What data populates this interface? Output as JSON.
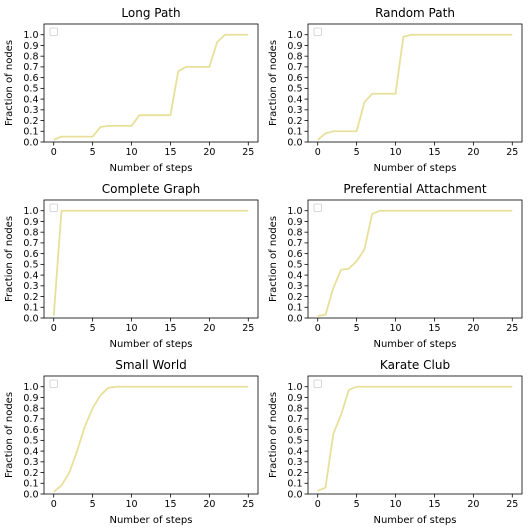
{
  "chart_data": [
    {
      "type": "line",
      "title": "Long Path",
      "xlabel": "Number of steps",
      "ylabel": "Fraction of nodes",
      "xlim": [
        -1.25,
        26.25
      ],
      "ylim": [
        0.0,
        1.1
      ],
      "xticks": [
        0,
        5,
        10,
        15,
        20,
        25
      ],
      "yticks": [
        0.0,
        0.1,
        0.2,
        0.3,
        0.4,
        0.5,
        0.6,
        0.7,
        0.8,
        0.9,
        1.0
      ],
      "xtick_labels": [
        "0",
        "5",
        "10",
        "15",
        "20",
        "25"
      ],
      "ytick_labels": [
        "0.0",
        "0.1",
        "0.2",
        "0.3",
        "0.4",
        "0.5",
        "0.6",
        "0.7",
        "0.8",
        "0.9",
        "1.0"
      ],
      "legend": "top-left, empty entry",
      "grid": false,
      "line_color": "#e8e09a",
      "series": [
        {
          "x": [
            0,
            1,
            2,
            3,
            4,
            5,
            6,
            7,
            8,
            9,
            10,
            11,
            12,
            13,
            14,
            15,
            16,
            17,
            18,
            19,
            20,
            21,
            22,
            23,
            24,
            25
          ],
          "values": [
            0.02,
            0.05,
            0.05,
            0.05,
            0.05,
            0.05,
            0.14,
            0.15,
            0.15,
            0.15,
            0.15,
            0.25,
            0.25,
            0.25,
            0.25,
            0.25,
            0.66,
            0.7,
            0.7,
            0.7,
            0.7,
            0.93,
            1.0,
            1.0,
            1.0,
            1.0
          ]
        }
      ]
    },
    {
      "type": "line",
      "title": "Random Path",
      "xlabel": "Number of steps",
      "ylabel": "Fraction of nodes",
      "xlim": [
        -1.25,
        26.25
      ],
      "ylim": [
        0.0,
        1.1
      ],
      "xticks": [
        0,
        5,
        10,
        15,
        20,
        25
      ],
      "yticks": [
        0.0,
        0.1,
        0.2,
        0.3,
        0.4,
        0.5,
        0.6,
        0.7,
        0.8,
        0.9,
        1.0
      ],
      "xtick_labels": [
        "0",
        "5",
        "10",
        "15",
        "20",
        "25"
      ],
      "ytick_labels": [
        "0.0",
        "0.1",
        "0.2",
        "0.3",
        "0.4",
        "0.5",
        "0.6",
        "0.7",
        "0.8",
        "0.9",
        "1.0"
      ],
      "legend": "top-left, empty entry",
      "grid": false,
      "line_color": "#e8e09a",
      "series": [
        {
          "x": [
            0,
            1,
            2,
            3,
            4,
            5,
            6,
            7,
            8,
            9,
            10,
            11,
            12,
            13,
            14,
            15,
            16,
            17,
            18,
            19,
            20,
            21,
            22,
            23,
            24,
            25
          ],
          "values": [
            0.02,
            0.08,
            0.1,
            0.1,
            0.1,
            0.1,
            0.37,
            0.45,
            0.45,
            0.45,
            0.45,
            0.98,
            1.0,
            1.0,
            1.0,
            1.0,
            1.0,
            1.0,
            1.0,
            1.0,
            1.0,
            1.0,
            1.0,
            1.0,
            1.0,
            1.0
          ]
        }
      ]
    },
    {
      "type": "line",
      "title": "Complete Graph",
      "xlabel": "Number of steps",
      "ylabel": "Fraction of nodes",
      "xlim": [
        -1.25,
        26.25
      ],
      "ylim": [
        0.0,
        1.1
      ],
      "xticks": [
        0,
        5,
        10,
        15,
        20,
        25
      ],
      "yticks": [
        0.0,
        0.1,
        0.2,
        0.3,
        0.4,
        0.5,
        0.6,
        0.7,
        0.8,
        0.9,
        1.0
      ],
      "xtick_labels": [
        "0",
        "5",
        "10",
        "15",
        "20",
        "25"
      ],
      "ytick_labels": [
        "0.0",
        "0.1",
        "0.2",
        "0.3",
        "0.4",
        "0.5",
        "0.6",
        "0.7",
        "0.8",
        "0.9",
        "1.0"
      ],
      "legend": "top-left, empty entry",
      "grid": false,
      "line_color": "#e8e09a",
      "series": [
        {
          "x": [
            0,
            1,
            2,
            3,
            4,
            5,
            6,
            7,
            8,
            9,
            10,
            11,
            12,
            13,
            14,
            15,
            16,
            17,
            18,
            19,
            20,
            21,
            22,
            23,
            24,
            25
          ],
          "values": [
            0.02,
            1.0,
            1.0,
            1.0,
            1.0,
            1.0,
            1.0,
            1.0,
            1.0,
            1.0,
            1.0,
            1.0,
            1.0,
            1.0,
            1.0,
            1.0,
            1.0,
            1.0,
            1.0,
            1.0,
            1.0,
            1.0,
            1.0,
            1.0,
            1.0,
            1.0
          ]
        }
      ]
    },
    {
      "type": "line",
      "title": "Preferential Attachment",
      "xlabel": "Number of steps",
      "ylabel": "Fraction of nodes",
      "xlim": [
        -1.25,
        26.25
      ],
      "ylim": [
        0.0,
        1.1
      ],
      "xticks": [
        0,
        5,
        10,
        15,
        20,
        25
      ],
      "yticks": [
        0.0,
        0.1,
        0.2,
        0.3,
        0.4,
        0.5,
        0.6,
        0.7,
        0.8,
        0.9,
        1.0
      ],
      "xtick_labels": [
        "0",
        "5",
        "10",
        "15",
        "20",
        "25"
      ],
      "ytick_labels": [
        "0.0",
        "0.1",
        "0.2",
        "0.3",
        "0.4",
        "0.5",
        "0.6",
        "0.7",
        "0.8",
        "0.9",
        "1.0"
      ],
      "legend": "top-left, empty entry",
      "grid": false,
      "line_color": "#e8e09a",
      "series": [
        {
          "x": [
            0,
            1,
            2,
            3,
            4,
            5,
            6,
            7,
            8,
            9,
            10,
            11,
            12,
            13,
            14,
            15,
            16,
            17,
            18,
            19,
            20,
            21,
            22,
            23,
            24,
            25
          ],
          "values": [
            0.02,
            0.03,
            0.28,
            0.45,
            0.46,
            0.53,
            0.64,
            0.97,
            1.0,
            1.0,
            1.0,
            1.0,
            1.0,
            1.0,
            1.0,
            1.0,
            1.0,
            1.0,
            1.0,
            1.0,
            1.0,
            1.0,
            1.0,
            1.0,
            1.0,
            1.0
          ]
        }
      ]
    },
    {
      "type": "line",
      "title": "Small World",
      "xlabel": "Number of steps",
      "ylabel": "Fraction of nodes",
      "xlim": [
        -1.25,
        26.25
      ],
      "ylim": [
        0.0,
        1.1
      ],
      "xticks": [
        0,
        5,
        10,
        15,
        20,
        25
      ],
      "yticks": [
        0.0,
        0.1,
        0.2,
        0.3,
        0.4,
        0.5,
        0.6,
        0.7,
        0.8,
        0.9,
        1.0
      ],
      "xtick_labels": [
        "0",
        "5",
        "10",
        "15",
        "20",
        "25"
      ],
      "ytick_labels": [
        "0.0",
        "0.1",
        "0.2",
        "0.3",
        "0.4",
        "0.5",
        "0.6",
        "0.7",
        "0.8",
        "0.9",
        "1.0"
      ],
      "legend": "top-left, empty entry",
      "grid": false,
      "line_color": "#e8e09a",
      "series": [
        {
          "x": [
            0,
            1,
            2,
            3,
            4,
            5,
            6,
            7,
            8,
            9,
            10,
            11,
            12,
            13,
            14,
            15,
            16,
            17,
            18,
            19,
            20,
            21,
            22,
            23,
            24,
            25
          ],
          "values": [
            0.02,
            0.08,
            0.2,
            0.4,
            0.63,
            0.8,
            0.92,
            0.99,
            1.0,
            1.0,
            1.0,
            1.0,
            1.0,
            1.0,
            1.0,
            1.0,
            1.0,
            1.0,
            1.0,
            1.0,
            1.0,
            1.0,
            1.0,
            1.0,
            1.0,
            1.0
          ]
        }
      ]
    },
    {
      "type": "line",
      "title": "Karate Club",
      "xlabel": "Number of steps",
      "ylabel": "Fraction of nodes",
      "xlim": [
        -1.25,
        26.25
      ],
      "ylim": [
        0.0,
        1.1
      ],
      "xticks": [
        0,
        5,
        10,
        15,
        20,
        25
      ],
      "yticks": [
        0.0,
        0.1,
        0.2,
        0.3,
        0.4,
        0.5,
        0.6,
        0.7,
        0.8,
        0.9,
        1.0
      ],
      "xtick_labels": [
        "0",
        "5",
        "10",
        "15",
        "20",
        "25"
      ],
      "ytick_labels": [
        "0.0",
        "0.1",
        "0.2",
        "0.3",
        "0.4",
        "0.5",
        "0.6",
        "0.7",
        "0.8",
        "0.9",
        "1.0"
      ],
      "legend": "top-left, empty entry",
      "grid": false,
      "line_color": "#e8e09a",
      "series": [
        {
          "x": [
            0,
            1,
            2,
            3,
            4,
            5,
            6,
            7,
            8,
            9,
            10,
            11,
            12,
            13,
            14,
            15,
            16,
            17,
            18,
            19,
            20,
            21,
            22,
            23,
            24,
            25
          ],
          "values": [
            0.03,
            0.06,
            0.56,
            0.74,
            0.97,
            1.0,
            1.0,
            1.0,
            1.0,
            1.0,
            1.0,
            1.0,
            1.0,
            1.0,
            1.0,
            1.0,
            1.0,
            1.0,
            1.0,
            1.0,
            1.0,
            1.0,
            1.0,
            1.0,
            1.0,
            1.0
          ]
        }
      ]
    }
  ]
}
